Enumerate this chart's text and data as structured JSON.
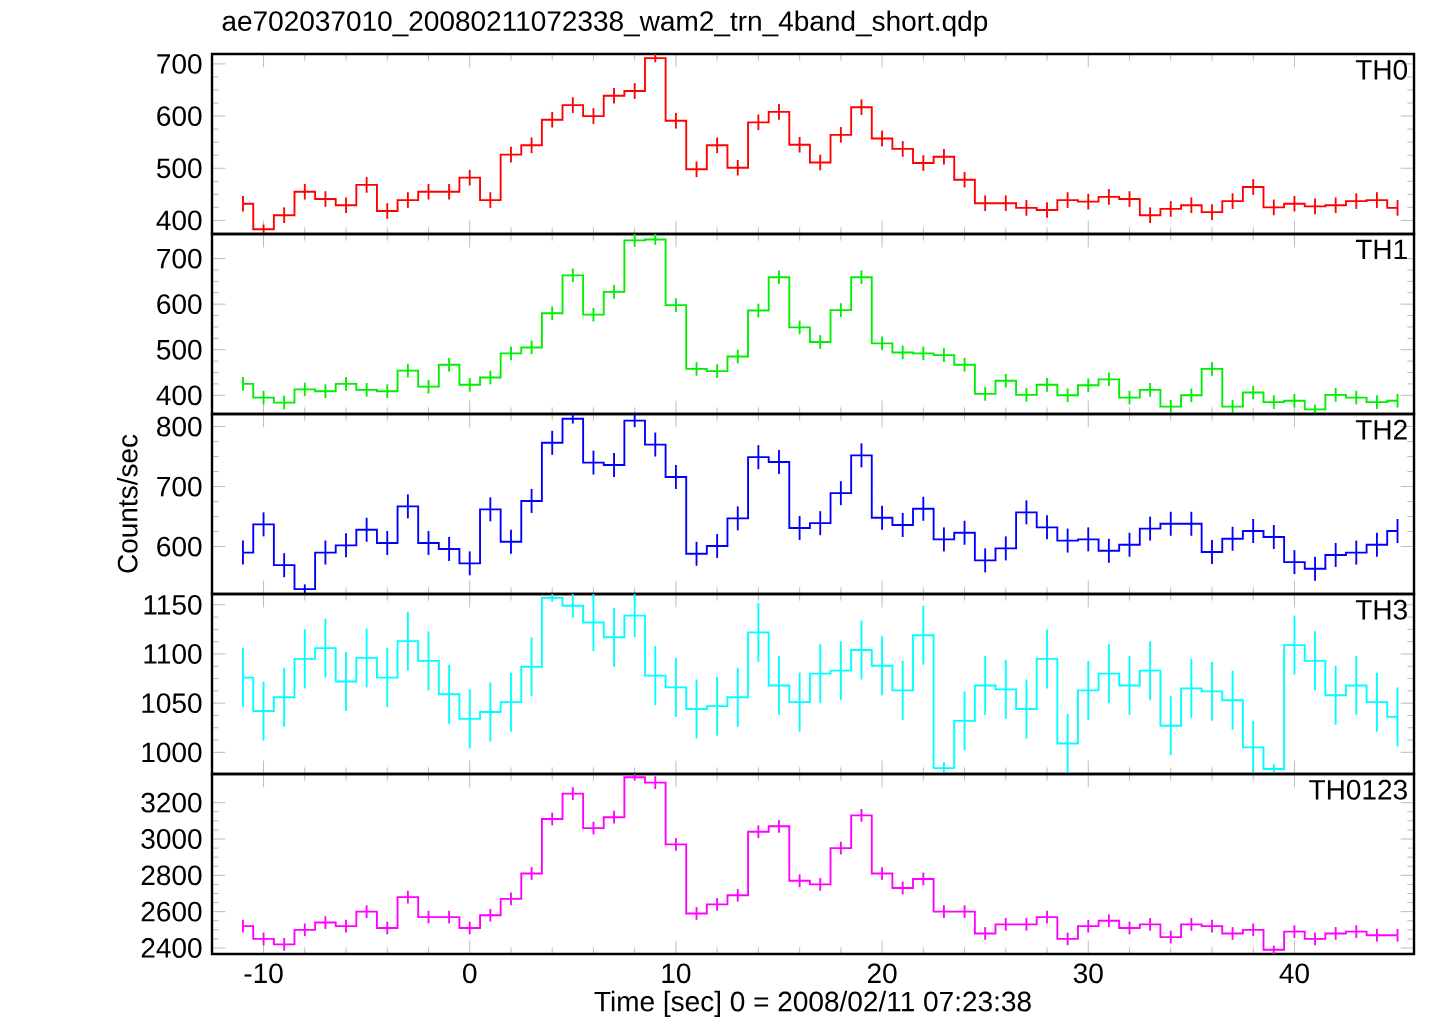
{
  "chart_data": [
    {
      "type": "step",
      "title": "ae702037010_20080211072338_wam2_trn_4band_short.qdp",
      "tick_labels": "y",
      "xlim": [
        -12.5,
        45.8
      ],
      "xticks": [
        -10,
        0,
        10,
        20,
        30,
        40
      ],
      "ylim": [
        374,
        719
      ],
      "yticks": [
        400,
        500,
        600,
        700
      ],
      "x": [
        -11,
        -10,
        -9,
        -8,
        -7,
        -6,
        -5,
        -4,
        -3,
        -2,
        -1,
        0,
        1,
        2,
        3,
        4,
        5,
        6,
        7,
        8,
        9,
        10,
        11,
        12,
        13,
        14,
        15,
        16,
        17,
        18,
        19,
        20,
        21,
        22,
        23,
        24,
        25,
        26,
        27,
        28,
        29,
        30,
        31,
        32,
        33,
        34,
        35,
        36,
        37,
        38,
        39,
        40,
        41,
        42,
        43,
        44,
        45
      ],
      "series": [
        {
          "name": "TH0",
          "color": "#ff0000",
          "values": [
            432,
            383,
            410,
            455,
            441,
            429,
            468,
            418,
            439,
            455,
            455,
            482,
            439,
            526,
            544,
            593,
            621,
            600,
            639,
            648,
            711,
            591,
            498,
            544,
            501,
            588,
            608,
            545,
            511,
            564,
            617,
            557,
            537,
            510,
            522,
            478,
            433,
            433,
            424,
            420,
            439,
            436,
            445,
            441,
            410,
            422,
            429,
            416,
            437,
            464,
            425,
            432,
            427,
            429,
            437,
            439,
            424
          ],
          "errors": [
            15,
            9,
            15,
            15,
            15,
            15,
            15,
            15,
            15,
            15,
            15,
            15,
            15,
            15,
            15,
            15,
            15,
            15,
            15,
            15,
            8,
            15,
            15,
            15,
            15,
            15,
            15,
            15,
            15,
            15,
            15,
            15,
            15,
            15,
            15,
            15,
            15,
            15,
            15,
            15,
            15,
            15,
            15,
            15,
            15,
            15,
            15,
            15,
            15,
            15,
            15,
            15,
            15,
            15,
            15,
            15,
            15
          ]
        }
      ]
    },
    {
      "type": "step",
      "tick_labels": "y",
      "xlim": [
        -12.5,
        45.8
      ],
      "xticks": [
        -10,
        0,
        10,
        20,
        30,
        40
      ],
      "ylim": [
        359,
        754
      ],
      "yticks": [
        400,
        500,
        600,
        700
      ],
      "x": [
        -11,
        -10,
        -9,
        -8,
        -7,
        -6,
        -5,
        -4,
        -3,
        -2,
        -1,
        0,
        1,
        2,
        3,
        4,
        5,
        6,
        7,
        8,
        9,
        10,
        11,
        12,
        13,
        14,
        15,
        16,
        17,
        18,
        19,
        20,
        21,
        22,
        23,
        24,
        25,
        26,
        27,
        28,
        29,
        30,
        31,
        32,
        33,
        34,
        35,
        36,
        37,
        38,
        39,
        40,
        41,
        42,
        43,
        44,
        45
      ],
      "series": [
        {
          "name": "TH1",
          "color": "#00ee00",
          "values": [
            425,
            395,
            384,
            413,
            409,
            425,
            412,
            409,
            454,
            419,
            467,
            423,
            439,
            492,
            505,
            580,
            663,
            577,
            627,
            740,
            742,
            598,
            458,
            453,
            485,
            586,
            659,
            549,
            517,
            587,
            659,
            514,
            494,
            492,
            488,
            467,
            403,
            432,
            401,
            423,
            400,
            422,
            435,
            395,
            412,
            375,
            400,
            458,
            375,
            406,
            385,
            388,
            369,
            401,
            395,
            385,
            388
          ],
          "errors": [
            15,
            15,
            15,
            15,
            15,
            15,
            15,
            15,
            15,
            15,
            15,
            15,
            15,
            15,
            15,
            15,
            15,
            15,
            15,
            14,
            12,
            15,
            15,
            15,
            15,
            15,
            15,
            15,
            15,
            15,
            15,
            15,
            15,
            15,
            15,
            15,
            15,
            15,
            15,
            15,
            15,
            15,
            15,
            15,
            15,
            15,
            15,
            15,
            15,
            15,
            15,
            15,
            10,
            15,
            15,
            15,
            15
          ]
        }
      ]
    },
    {
      "type": "step",
      "tick_labels": "y",
      "ylabel": "Counts/sec",
      "xlim": [
        -12.5,
        45.8
      ],
      "xticks": [
        -10,
        0,
        10,
        20,
        30,
        40
      ],
      "ylim": [
        521,
        821
      ],
      "yticks": [
        600,
        700,
        800
      ],
      "x": [
        -11,
        -10,
        -9,
        -8,
        -7,
        -6,
        -5,
        -4,
        -3,
        -2,
        -1,
        0,
        1,
        2,
        3,
        4,
        5,
        6,
        7,
        8,
        9,
        10,
        11,
        12,
        13,
        14,
        15,
        16,
        17,
        18,
        19,
        20,
        21,
        22,
        23,
        24,
        25,
        26,
        27,
        28,
        29,
        30,
        31,
        32,
        33,
        34,
        35,
        36,
        37,
        38,
        39,
        40,
        41,
        42,
        43,
        44,
        45
      ],
      "series": [
        {
          "name": "TH2",
          "color": "#0000ff",
          "values": [
            590,
            637,
            569,
            529,
            590,
            602,
            628,
            606,
            667,
            606,
            596,
            572,
            662,
            608,
            676,
            773,
            813,
            740,
            736,
            810,
            770,
            716,
            588,
            601,
            647,
            749,
            741,
            631,
            639,
            689,
            752,
            648,
            636,
            663,
            612,
            623,
            577,
            597,
            657,
            632,
            610,
            612,
            593,
            603,
            630,
            638,
            638,
            591,
            613,
            626,
            616,
            574,
            563,
            586,
            590,
            603,
            626
          ],
          "errors": [
            20,
            20,
            20,
            8,
            20,
            20,
            20,
            20,
            20,
            20,
            20,
            20,
            20,
            20,
            20,
            20,
            8,
            20,
            20,
            11,
            20,
            20,
            20,
            20,
            20,
            20,
            20,
            20,
            20,
            20,
            20,
            20,
            20,
            20,
            20,
            20,
            20,
            20,
            20,
            20,
            20,
            20,
            20,
            20,
            20,
            20,
            20,
            20,
            20,
            20,
            20,
            20,
            20,
            20,
            20,
            20,
            20
          ]
        }
      ]
    },
    {
      "type": "step",
      "tick_labels": "y",
      "xlim": [
        -12.5,
        45.8
      ],
      "xticks": [
        -10,
        0,
        10,
        20,
        30,
        40
      ],
      "ylim": [
        978,
        1161
      ],
      "yticks": [
        1000,
        1050,
        1100,
        1150
      ],
      "x": [
        -11,
        -10,
        -9,
        -8,
        -7,
        -6,
        -5,
        -4,
        -3,
        -2,
        -1,
        0,
        1,
        2,
        3,
        4,
        5,
        6,
        7,
        8,
        9,
        10,
        11,
        12,
        13,
        14,
        15,
        16,
        17,
        18,
        19,
        20,
        21,
        22,
        23,
        24,
        25,
        26,
        27,
        28,
        29,
        30,
        31,
        32,
        33,
        34,
        35,
        36,
        37,
        38,
        39,
        40,
        41,
        42,
        43,
        44,
        45
      ],
      "series": [
        {
          "name": "TH3",
          "color": "#00ffff",
          "values": [
            1076,
            1042,
            1056,
            1095,
            1106,
            1072,
            1096,
            1076,
            1113,
            1093,
            1059,
            1034,
            1041,
            1051,
            1087,
            1157,
            1149,
            1132,
            1117,
            1139,
            1078,
            1066,
            1044,
            1047,
            1056,
            1122,
            1068,
            1051,
            1080,
            1083,
            1104,
            1088,
            1063,
            1119,
            984,
            1032,
            1068,
            1064,
            1044,
            1095,
            1009,
            1063,
            1080,
            1068,
            1083,
            1027,
            1065,
            1062,
            1053,
            1005,
            983,
            1109,
            1093,
            1058,
            1068,
            1051,
            1036
          ],
          "errors": [
            30,
            30,
            30,
            30,
            30,
            30,
            30,
            30,
            30,
            30,
            30,
            30,
            30,
            30,
            30,
            4,
            12,
            29,
            30,
            22,
            30,
            30,
            30,
            30,
            30,
            30,
            30,
            30,
            30,
            30,
            30,
            30,
            30,
            30,
            6,
            30,
            30,
            30,
            30,
            30,
            30,
            30,
            30,
            30,
            30,
            30,
            30,
            30,
            30,
            27,
            5,
            30,
            30,
            30,
            30,
            30,
            30
          ]
        }
      ]
    },
    {
      "type": "step",
      "xlabel": "Time [sec] 0 = 2008/02/11 07:23:38",
      "xlim": [
        -12.5,
        45.8
      ],
      "xticks": [
        -10,
        0,
        10,
        20,
        30,
        40
      ],
      "ylim": [
        2367,
        3358
      ],
      "yticks": [
        2400,
        2600,
        2800,
        3000,
        3200
      ],
      "x": [
        -11,
        -10,
        -9,
        -8,
        -7,
        -6,
        -5,
        -4,
        -3,
        -2,
        -1,
        0,
        1,
        2,
        3,
        4,
        5,
        6,
        7,
        8,
        9,
        10,
        11,
        12,
        13,
        14,
        15,
        16,
        17,
        18,
        19,
        20,
        21,
        22,
        23,
        24,
        25,
        26,
        27,
        28,
        29,
        30,
        31,
        32,
        33,
        34,
        35,
        36,
        37,
        38,
        39,
        40,
        41,
        42,
        43,
        44,
        45
      ],
      "series": [
        {
          "name": "TH0123",
          "color": "#ff00ff",
          "values": [
            2520,
            2450,
            2420,
            2500,
            2540,
            2520,
            2600,
            2510,
            2680,
            2570,
            2570,
            2510,
            2580,
            2670,
            2810,
            3110,
            3250,
            3060,
            3120,
            3340,
            3310,
            2970,
            2590,
            2640,
            2690,
            3040,
            3070,
            2770,
            2750,
            2950,
            3130,
            2810,
            2730,
            2780,
            2600,
            2600,
            2480,
            2530,
            2530,
            2570,
            2450,
            2520,
            2550,
            2510,
            2530,
            2460,
            2530,
            2520,
            2480,
            2500,
            2390,
            2490,
            2450,
            2480,
            2490,
            2470,
            2470
          ],
          "errors": [
            35,
            35,
            35,
            35,
            35,
            35,
            35,
            35,
            35,
            35,
            35,
            35,
            35,
            35,
            35,
            35,
            35,
            35,
            35,
            18,
            35,
            35,
            35,
            35,
            35,
            35,
            35,
            35,
            35,
            35,
            35,
            35,
            35,
            35,
            35,
            35,
            35,
            35,
            35,
            35,
            35,
            35,
            35,
            35,
            35,
            35,
            35,
            35,
            35,
            35,
            23,
            35,
            35,
            35,
            35,
            35,
            35
          ]
        }
      ]
    }
  ]
}
